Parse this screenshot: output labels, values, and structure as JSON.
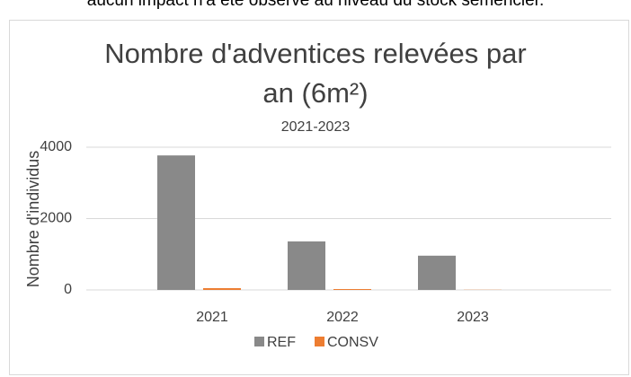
{
  "intro_text": "aucun impact n'a été observé au niveau du stock semencier.",
  "chart_data": {
    "type": "bar",
    "title": "Nombre d'adventices relevées par an (6m²)",
    "subtitle": "2021-2023",
    "y_label": "Nombre d'individus",
    "categories": [
      "2021",
      "2022",
      "2023"
    ],
    "series": [
      {
        "name": "REF",
        "color": "#898989",
        "values": [
          3770,
          1360,
          960
        ]
      },
      {
        "name": "CONSV",
        "color": "#ed7d31",
        "values": [
          50,
          25,
          5
        ]
      }
    ],
    "ylim": [
      0,
      4000
    ],
    "yticks": [
      0,
      2000,
      4000
    ],
    "grid": true,
    "legend": "bottom"
  }
}
